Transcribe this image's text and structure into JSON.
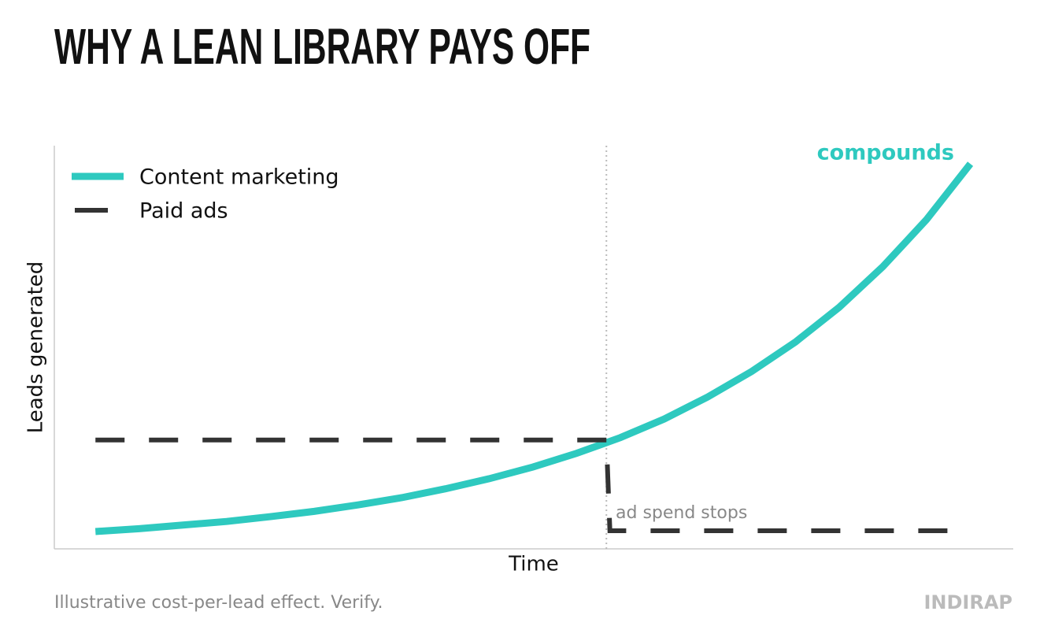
{
  "chart_data": {
    "type": "line",
    "title": "WHY A LEAN LIBRARY PAYS OFF",
    "xlabel": "Time",
    "ylabel": "Leads generated",
    "xlim": [
      -0.47,
      10.49
    ],
    "ylim": [
      0,
      100
    ],
    "legend": "upper-left",
    "vline": 5.84,
    "series": [
      {
        "name": "Content marketing",
        "color": "#2ec9bf",
        "style": "solid",
        "x": [
          0,
          0.5,
          1,
          1.5,
          2,
          2.5,
          3,
          3.5,
          4,
          4.5,
          5,
          5.5,
          6,
          6.5,
          7,
          7.5,
          8,
          8.5,
          9,
          9.5,
          10
        ],
        "values": [
          4.3,
          5.0,
          5.9,
          6.8,
          8.0,
          9.3,
          10.9,
          12.7,
          14.9,
          17.4,
          20.3,
          23.7,
          27.6,
          32.2,
          37.7,
          44.0,
          51.3,
          59.9,
          70.0,
          81.7,
          95.5
        ]
      },
      {
        "name": "Paid ads",
        "color": "#333333",
        "style": "dashed",
        "x": [
          0,
          5.84,
          5.88,
          9.81
        ],
        "values": [
          27,
          27,
          4.5,
          4.5
        ]
      }
    ],
    "annotations": [
      "compounds",
      "ad spend stops"
    ],
    "footnote": "Illustrative cost-per-lead effect. Verify.",
    "brand": "INDIRAP"
  }
}
